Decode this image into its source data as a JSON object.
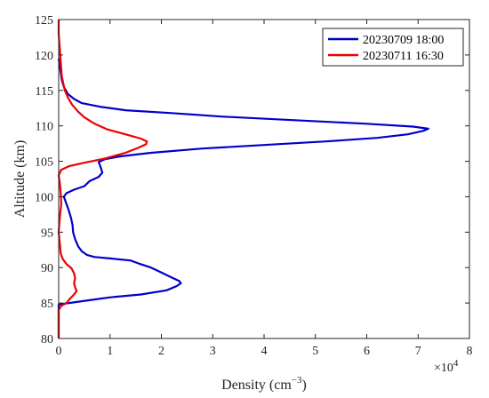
{
  "chart_data": {
    "type": "line",
    "xlabel_base": "Density (cm",
    "xlabel_exp": "−3",
    "xlabel_close": ")",
    "ylabel": "Altitude (km)",
    "x_multiplier_base": "×10",
    "x_multiplier_exp": "4",
    "xlim": [
      0,
      8
    ],
    "ylim": [
      80,
      125
    ],
    "x_ticks": [
      0,
      1,
      2,
      3,
      4,
      5,
      6,
      7,
      8
    ],
    "y_ticks": [
      80,
      85,
      90,
      95,
      100,
      105,
      110,
      115,
      120,
      125
    ],
    "legend_position": "top-right",
    "grid": false,
    "series": [
      {
        "name": "20230709 18:00",
        "color": "#0000cc",
        "points": [
          [
            0.0,
            80.0
          ],
          [
            0.0,
            83.0
          ],
          [
            0.0,
            84.8
          ],
          [
            0.2,
            85.0
          ],
          [
            0.6,
            85.4
          ],
          [
            1.0,
            85.8
          ],
          [
            1.6,
            86.2
          ],
          [
            2.1,
            86.8
          ],
          [
            2.3,
            87.4
          ],
          [
            2.38,
            87.8
          ],
          [
            2.35,
            88.1
          ],
          [
            2.2,
            88.6
          ],
          [
            2.0,
            89.3
          ],
          [
            1.8,
            90.0
          ],
          [
            1.55,
            90.6
          ],
          [
            1.4,
            91.0
          ],
          [
            1.0,
            91.3
          ],
          [
            0.7,
            91.5
          ],
          [
            0.55,
            91.8
          ],
          [
            0.45,
            92.3
          ],
          [
            0.38,
            93.0
          ],
          [
            0.32,
            94.0
          ],
          [
            0.28,
            95.0
          ],
          [
            0.27,
            96.0
          ],
          [
            0.24,
            97.0
          ],
          [
            0.2,
            98.0
          ],
          [
            0.15,
            99.0
          ],
          [
            0.1,
            100.0
          ],
          [
            0.15,
            100.5
          ],
          [
            0.3,
            101.0
          ],
          [
            0.5,
            101.5
          ],
          [
            0.6,
            102.2
          ],
          [
            0.78,
            102.8
          ],
          [
            0.85,
            103.4
          ],
          [
            0.83,
            103.9
          ],
          [
            0.8,
            104.5
          ],
          [
            0.78,
            104.9
          ],
          [
            0.9,
            105.3
          ],
          [
            1.2,
            105.7
          ],
          [
            1.8,
            106.2
          ],
          [
            2.8,
            106.8
          ],
          [
            4.0,
            107.3
          ],
          [
            5.2,
            107.8
          ],
          [
            6.2,
            108.3
          ],
          [
            6.8,
            108.8
          ],
          [
            7.1,
            109.3
          ],
          [
            7.2,
            109.6
          ],
          [
            6.9,
            109.9
          ],
          [
            6.0,
            110.3
          ],
          [
            4.6,
            110.8
          ],
          [
            3.2,
            111.3
          ],
          [
            2.2,
            111.8
          ],
          [
            1.3,
            112.2
          ],
          [
            0.8,
            112.7
          ],
          [
            0.45,
            113.2
          ],
          [
            0.3,
            113.8
          ],
          [
            0.18,
            114.5
          ],
          [
            0.1,
            115.5
          ],
          [
            0.06,
            116.5
          ],
          [
            0.04,
            117.5
          ],
          [
            0.02,
            118.5
          ],
          [
            0.0,
            119.5
          ]
        ]
      },
      {
        "name": "20230711 16:30",
        "color": "#ee0000",
        "points": [
          [
            0.0,
            80.0
          ],
          [
            0.0,
            84.0
          ],
          [
            0.05,
            84.6
          ],
          [
            0.15,
            85.0
          ],
          [
            0.22,
            85.6
          ],
          [
            0.3,
            86.2
          ],
          [
            0.35,
            86.7
          ],
          [
            0.32,
            87.2
          ],
          [
            0.3,
            87.8
          ],
          [
            0.32,
            88.5
          ],
          [
            0.3,
            89.2
          ],
          [
            0.25,
            89.9
          ],
          [
            0.15,
            90.5
          ],
          [
            0.08,
            91.2
          ],
          [
            0.04,
            92.0
          ],
          [
            0.02,
            93.5
          ],
          [
            0.0,
            95.0
          ],
          [
            0.02,
            97.0
          ],
          [
            0.05,
            99.0
          ],
          [
            0.04,
            100.5
          ],
          [
            0.02,
            102.0
          ],
          [
            0.0,
            103.0
          ],
          [
            0.05,
            103.8
          ],
          [
            0.2,
            104.3
          ],
          [
            0.5,
            104.8
          ],
          [
            0.9,
            105.4
          ],
          [
            1.3,
            106.2
          ],
          [
            1.55,
            106.9
          ],
          [
            1.7,
            107.4
          ],
          [
            1.72,
            107.8
          ],
          [
            1.6,
            108.2
          ],
          [
            1.3,
            108.8
          ],
          [
            0.95,
            109.5
          ],
          [
            0.7,
            110.3
          ],
          [
            0.5,
            111.2
          ],
          [
            0.38,
            112.0
          ],
          [
            0.26,
            113.0
          ],
          [
            0.18,
            114.0
          ],
          [
            0.12,
            115.0
          ],
          [
            0.09,
            116.0
          ],
          [
            0.06,
            117.0
          ],
          [
            0.05,
            118.0
          ],
          [
            0.04,
            119.0
          ],
          [
            0.03,
            120.0
          ],
          [
            0.02,
            121.0
          ],
          [
            0.01,
            122.0
          ],
          [
            0.0,
            123.0
          ],
          [
            0.0,
            125.0
          ]
        ]
      }
    ]
  }
}
